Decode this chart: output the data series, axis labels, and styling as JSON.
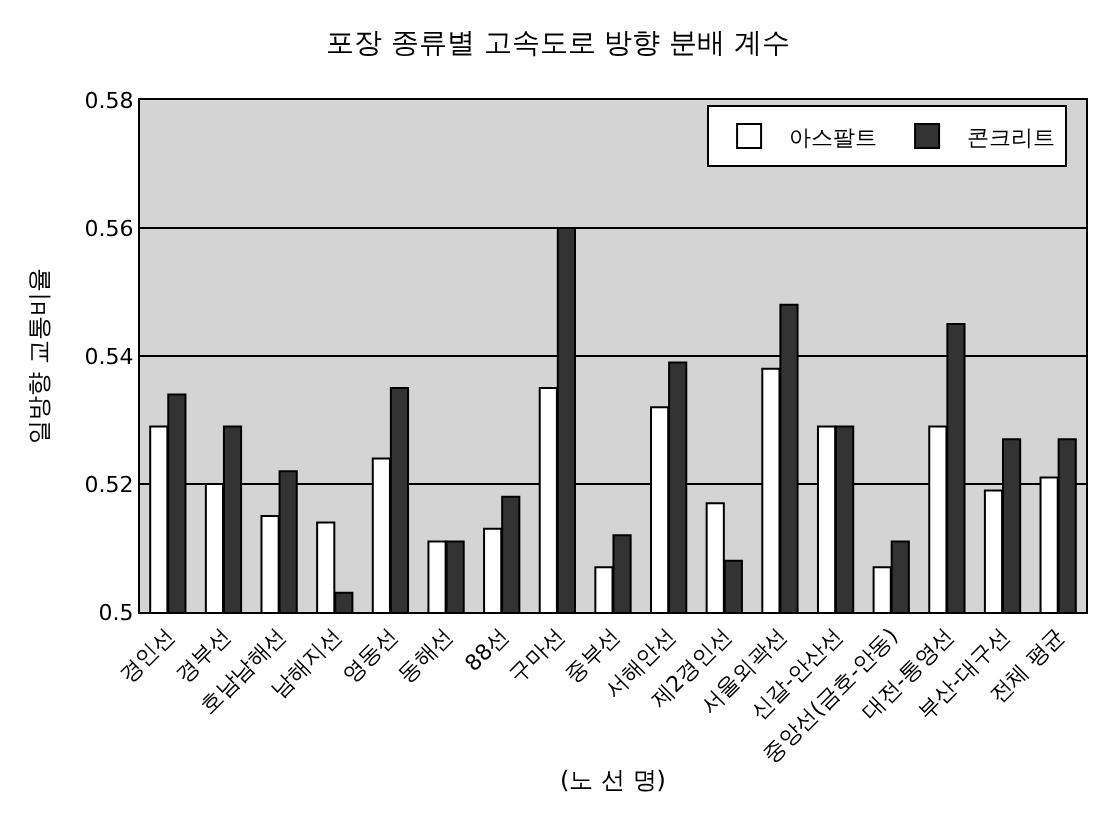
{
  "chart_data": {
    "type": "bar",
    "title": "포장 종류별 고속도로 방향 분배 계수",
    "xlabel": "(노 선 명)",
    "ylabel": "일방향 교통비율",
    "categories": [
      "경인선",
      "경부선",
      "호남남해선",
      "남해지선",
      "영동선",
      "동해선",
      "88선",
      "구마선",
      "중부선",
      "서해안선",
      "제2경인선",
      "서울외곽선",
      "신갈-안산선",
      "중앙선(금호-안동)",
      "대전-통영선",
      "부산-대구선",
      "전체 평균"
    ],
    "series": [
      {
        "name": "아스팔트",
        "color": "#ffffff",
        "values": [
          0.529,
          0.52,
          0.515,
          0.514,
          0.524,
          0.511,
          0.513,
          0.535,
          0.507,
          0.532,
          0.517,
          0.538,
          0.529,
          0.507,
          0.529,
          0.519,
          0.521
        ]
      },
      {
        "name": "콘크리트",
        "color": "#333333",
        "values": [
          0.534,
          0.529,
          0.522,
          0.503,
          0.535,
          0.511,
          0.518,
          0.56,
          0.512,
          0.539,
          0.508,
          0.548,
          0.529,
          0.511,
          0.545,
          0.527,
          0.527
        ]
      }
    ],
    "ylim": [
      0.5,
      0.58
    ],
    "yticks": [
      0.5,
      0.52,
      0.54,
      0.56,
      0.58
    ],
    "grid": "y",
    "legend": "top right"
  }
}
